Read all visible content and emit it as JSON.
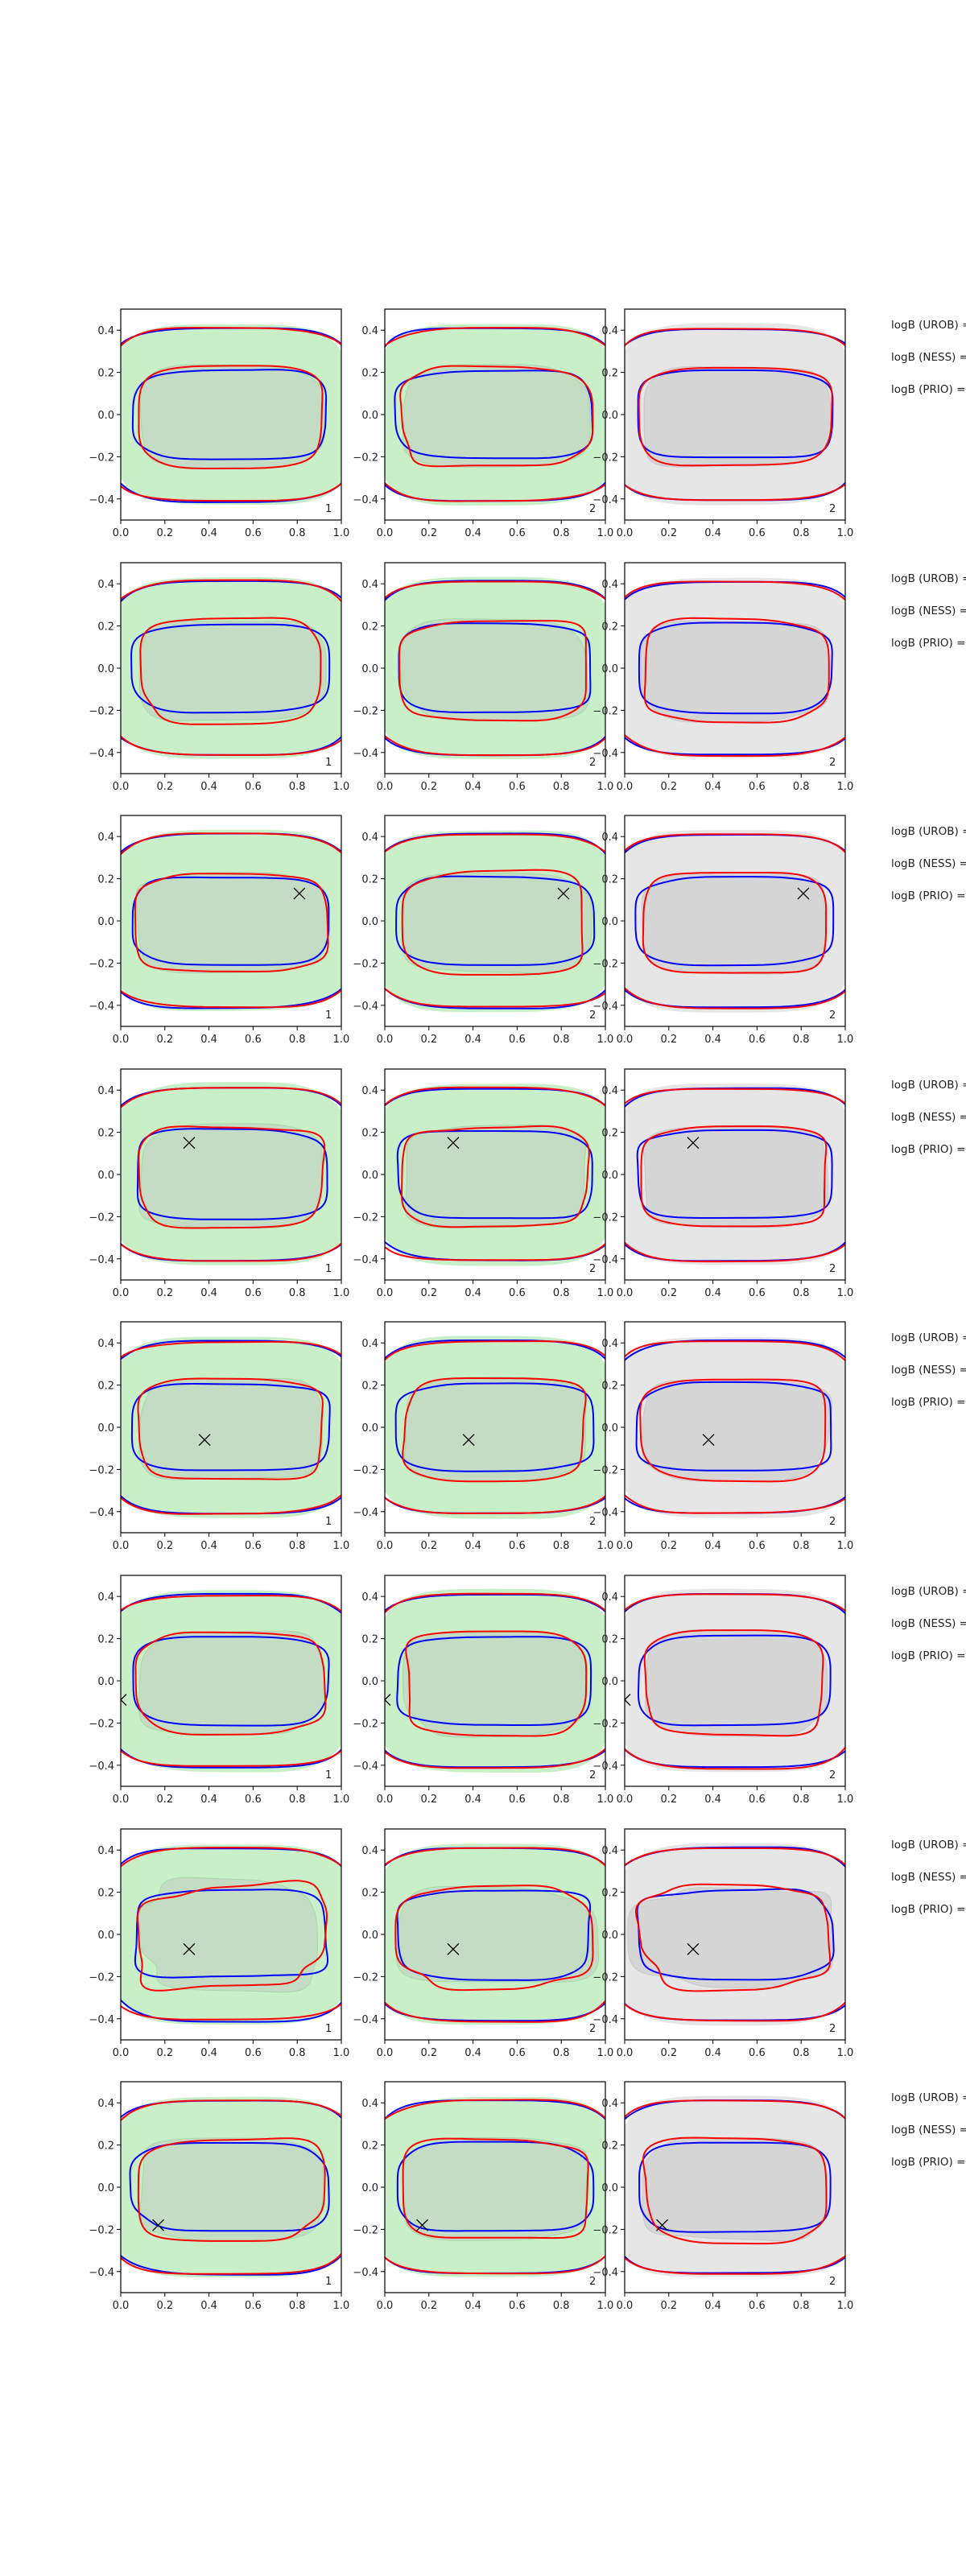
{
  "chart_data": {
    "type": "contour",
    "layout": {
      "rows": 8,
      "cols": 3
    },
    "xlim": [
      0.0,
      1.0
    ],
    "ylim": [
      -0.5,
      0.5
    ],
    "xticks": [
      "0.0",
      "0.2",
      "0.4",
      "0.6",
      "0.8",
      "1.0"
    ],
    "yticks": [
      "0.4",
      "0.2",
      "0.0",
      "−0.2",
      "−0.4"
    ],
    "grid": false,
    "colors": {
      "blue_contour": "#0000ff",
      "red_contour": "#ff0000",
      "green_fill": "#c9efc9",
      "green_fill_inner": "#c3dcc3",
      "grey_fill": "#e6e6e6",
      "grey_fill_inner": "#d5d5d5",
      "marker": "#000000"
    },
    "column_fill": [
      "green",
      "green",
      "grey"
    ],
    "column_labels": [
      "1",
      "2",
      "2"
    ],
    "legend_lines": [
      "logB (UROB) =",
      "logB (NESS) =",
      "logB (PRIO) ="
    ],
    "markers": [
      null,
      null,
      [
        0.81,
        0.13
      ],
      [
        0.31,
        0.15
      ],
      [
        0.38,
        -0.06
      ],
      [
        0.0,
        -0.09
      ],
      [
        0.31,
        -0.07
      ],
      [
        0.17,
        -0.18
      ]
    ]
  }
}
